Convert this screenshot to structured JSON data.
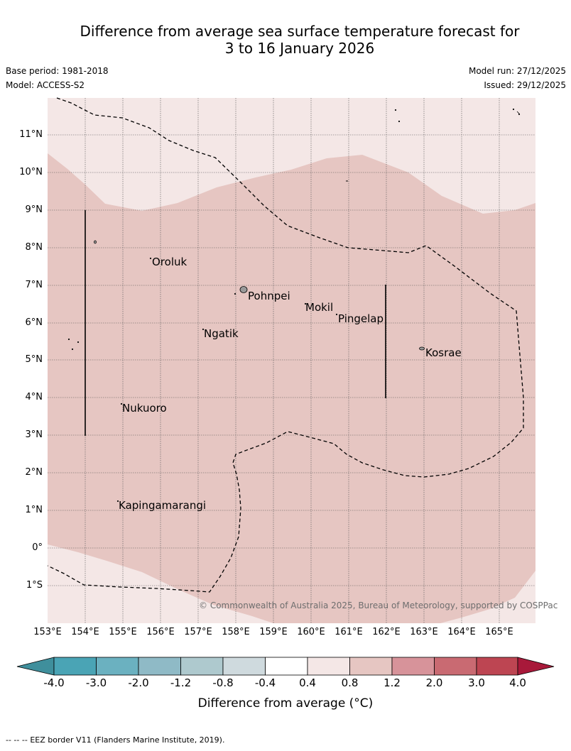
{
  "title_line1": "Difference from average sea surface temperature forecast for",
  "title_line2": "3 to 16 January 2026",
  "base_period": "Base period: 1981-2018",
  "model": "Model: ACCESS-S2",
  "model_run": "Model run: 27/12/2025",
  "issued": "Issued: 29/12/2025",
  "lat_labels": [
    "11°N",
    "10°N",
    "9°N",
    "8°N",
    "7°N",
    "6°N",
    "5°N",
    "4°N",
    "3°N",
    "2°N",
    "1°N",
    "0°",
    "1°S"
  ],
  "lon_labels": [
    "153°E",
    "154°E",
    "155°E",
    "156°E",
    "157°E",
    "158°E",
    "159°E",
    "160°E",
    "161°E",
    "162°E",
    "163°E",
    "164°E",
    "165°E"
  ],
  "islands": {
    "oroluk": "Oroluk",
    "pohnpei": "Pohnpei",
    "mokil": "Mokil",
    "pingelap": "Pingelap",
    "ngatik": "Ngatik",
    "kosrae": "Kosrae",
    "nukuoro": "Nukuoro",
    "kapingamarangi": "Kapingamarangi"
  },
  "copyright": "© Commonwealth of Australia 2025, Bureau of Meteorology, supported by COSPPac",
  "colorbar": {
    "title": "Difference from average (°C)",
    "tick_labels": [
      "-4.0",
      "-3.0",
      "-2.0",
      "-1.2",
      "-0.8",
      "-0.4",
      "0.4",
      "0.8",
      "1.2",
      "2.0",
      "3.0",
      "4.0"
    ],
    "colors": [
      "#3f8f9c",
      "#4aa4b5",
      "#6bb1c0",
      "#8fbac6",
      "#aec9ce",
      "#cfdade",
      "#ffffff",
      "#f4e7e6",
      "#e6c6c2",
      "#d7939a",
      "#c96a72",
      "#bd4552",
      "#a8193a"
    ]
  },
  "eez_note": "EEZ border V11 (Flanders Marine Institute, 2019).",
  "eez_symbol": "-- --  --"
}
